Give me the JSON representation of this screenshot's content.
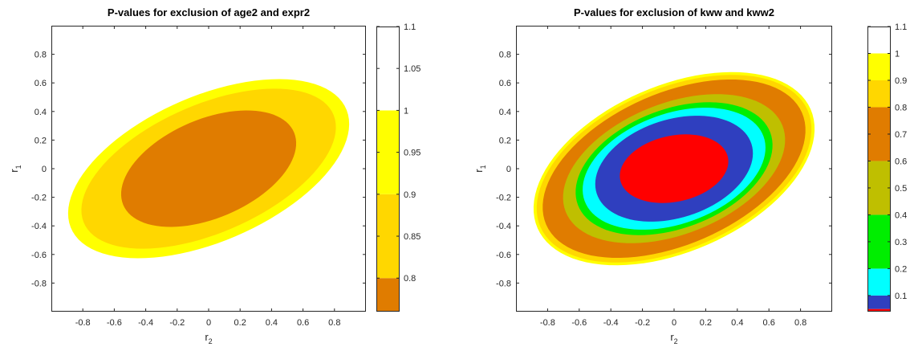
{
  "chart_data": [
    {
      "type": "contour",
      "title": "P-values for exclusion of age2 and expr2",
      "xlabel": "r2",
      "ylabel": "r1",
      "xlim": [
        -1,
        1
      ],
      "ylim": [
        -1,
        1
      ],
      "x_ticks": [
        -0.8,
        -0.6,
        -0.4,
        -0.2,
        0,
        0.2,
        0.4,
        0.6,
        0.8
      ],
      "y_ticks": [
        0.8,
        0.6,
        0.4,
        0.2,
        0,
        -0.2,
        -0.4,
        -0.6,
        -0.8
      ],
      "x_tick_labels": [
        "-0.8",
        "-0.6",
        "-0.4",
        "-0.2",
        "0",
        "0.2",
        "0.4",
        "0.6",
        "0.8"
      ],
      "y_tick_labels": [
        "0.8",
        "0.6",
        "0.4",
        "0.2",
        "0",
        "-0.2",
        "-0.4",
        "-0.6",
        "-0.8"
      ],
      "grid": false,
      "regions": [
        {
          "level": 0.8,
          "color": "#FFFF00",
          "center": [
            0,
            0
          ],
          "semi_major": 0.97,
          "semi_minor": 0.5,
          "angle_deg": 27
        },
        {
          "level": 0.85,
          "color": "#FFD700",
          "center": [
            0,
            0
          ],
          "semi_major": 0.88,
          "semi_minor": 0.44,
          "angle_deg": 27
        },
        {
          "level": 0.9,
          "color": "#E07C00",
          "center": [
            0,
            0
          ],
          "semi_major": 0.6,
          "semi_minor": 0.34,
          "angle_deg": 27
        }
      ],
      "colorbar": {
        "range": [
          0.76,
          1.1
        ],
        "ticks": [
          0.8,
          0.85,
          0.9,
          0.95,
          1,
          1.05,
          1.1
        ],
        "tick_labels": [
          "0.8",
          "0.85",
          "0.9",
          "0.95",
          "1",
          "1.05",
          "1.1"
        ],
        "bands": [
          {
            "from": 0.76,
            "to": 0.8,
            "color": "#E07C00"
          },
          {
            "from": 0.8,
            "to": 0.9,
            "color": "#FFD700"
          },
          {
            "from": 0.9,
            "to": 1.0,
            "color": "#FFFF00"
          },
          {
            "from": 1.0,
            "to": 1.1,
            "color": "#FFFFFF"
          }
        ]
      }
    },
    {
      "type": "contour",
      "title": "P-values for exclusion of kww and kww2",
      "xlabel": "r2",
      "ylabel": "r1",
      "xlim": [
        -1,
        1
      ],
      "ylim": [
        -1,
        1
      ],
      "x_ticks": [
        -0.8,
        -0.6,
        -0.4,
        -0.2,
        0,
        0.2,
        0.4,
        0.6,
        0.8
      ],
      "y_ticks": [
        0.8,
        0.6,
        0.4,
        0.2,
        0,
        -0.2,
        -0.4,
        -0.6,
        -0.8
      ],
      "x_tick_labels": [
        "-0.8",
        "-0.6",
        "-0.4",
        "-0.2",
        "0",
        "0.2",
        "0.4",
        "0.6",
        "0.8"
      ],
      "y_tick_labels": [
        "0.8",
        "0.6",
        "0.4",
        "0.2",
        "0",
        "-0.2",
        "-0.4",
        "-0.6",
        "-0.8"
      ],
      "grid": false,
      "regions": [
        {
          "level": 0.9,
          "color": "#FFFF00",
          "center": [
            0,
            0
          ],
          "semi_major": 0.96,
          "semi_minor": 0.57,
          "angle_deg": 28
        },
        {
          "level": 0.8,
          "color": "#FFD700",
          "center": [
            0,
            0
          ],
          "semi_major": 0.94,
          "semi_minor": 0.55,
          "angle_deg": 28
        },
        {
          "level": 0.7,
          "color": "#E07C00",
          "center": [
            0,
            0
          ],
          "semi_major": 0.9,
          "semi_minor": 0.52,
          "angle_deg": 28
        },
        {
          "level": 0.5,
          "color": "#BFBF00",
          "center": [
            0,
            0
          ],
          "semi_major": 0.75,
          "semi_minor": 0.45,
          "angle_deg": 26
        },
        {
          "level": 0.3,
          "color": "#00EE00",
          "center": [
            0,
            0
          ],
          "semi_major": 0.66,
          "semi_minor": 0.41,
          "angle_deg": 25
        },
        {
          "level": 0.2,
          "color": "#00FFFF",
          "center": [
            0,
            0
          ],
          "semi_major": 0.61,
          "semi_minor": 0.38,
          "angle_deg": 24
        },
        {
          "level": 0.1,
          "color": "#2F3FBF",
          "center": [
            0,
            0
          ],
          "semi_major": 0.52,
          "semi_minor": 0.34,
          "angle_deg": 22
        },
        {
          "level": 0.05,
          "color": "#FF0000",
          "center": [
            0,
            0
          ],
          "semi_major": 0.35,
          "semi_minor": 0.23,
          "angle_deg": 15
        }
      ],
      "colorbar": {
        "range": [
          0.04,
          1.1
        ],
        "ticks": [
          0.1,
          0.2,
          0.3,
          0.4,
          0.5,
          0.6,
          0.7,
          0.8,
          0.9,
          1,
          1.1
        ],
        "tick_labels": [
          "0.1",
          "0.2",
          "0.3",
          "0.4",
          "0.5",
          "0.6",
          "0.7",
          "0.8",
          "0.9",
          "1",
          "1.1"
        ],
        "bands": [
          {
            "from": 0.04,
            "to": 0.05,
            "color": "#FF0000"
          },
          {
            "from": 0.05,
            "to": 0.1,
            "color": "#2F3FBF"
          },
          {
            "from": 0.1,
            "to": 0.2,
            "color": "#00FFFF"
          },
          {
            "from": 0.2,
            "to": 0.4,
            "color": "#00EE00"
          },
          {
            "from": 0.4,
            "to": 0.6,
            "color": "#BFBF00"
          },
          {
            "from": 0.6,
            "to": 0.8,
            "color": "#E07C00"
          },
          {
            "from": 0.8,
            "to": 0.9,
            "color": "#FFD700"
          },
          {
            "from": 0.9,
            "to": 1.0,
            "color": "#FFFF00"
          },
          {
            "from": 1.0,
            "to": 1.1,
            "color": "#FFFFFF"
          }
        ]
      }
    }
  ]
}
